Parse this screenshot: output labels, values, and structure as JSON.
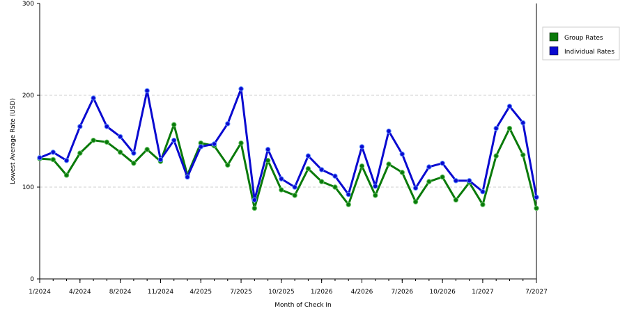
{
  "chart_data": {
    "type": "line",
    "title": "",
    "xlabel": "Month of Check In",
    "ylabel": "Lowest Average Rate (USD)",
    "ylim": [
      0,
      300
    ],
    "y_ticks": [
      "0",
      "100",
      "200",
      "300"
    ],
    "grid": "horizontal dashed",
    "legend_position": "top-right",
    "x_tick_labels": [
      {
        "i": 0,
        "label": "1/2024"
      },
      {
        "i": 3,
        "label": "4/2024"
      },
      {
        "i": 6,
        "label": "8/2024"
      },
      {
        "i": 9,
        "label": "11/2024"
      },
      {
        "i": 12,
        "label": "4/2025"
      },
      {
        "i": 15,
        "label": "7/2025"
      },
      {
        "i": 18,
        "label": "10/2025"
      },
      {
        "i": 21,
        "label": "1/2026"
      },
      {
        "i": 24,
        "label": "4/2026"
      },
      {
        "i": 27,
        "label": "7/2026"
      },
      {
        "i": 30,
        "label": "10/2026"
      },
      {
        "i": 33,
        "label": "1/2027"
      },
      {
        "i": 37,
        "label": "7/2027"
      }
    ],
    "series": [
      {
        "name": "Group Rates",
        "color": "#0a7a0a",
        "values": [
          131,
          130,
          113,
          137,
          151,
          149,
          138,
          126,
          141,
          128,
          168,
          113,
          148,
          145,
          124,
          148,
          77,
          129,
          97,
          91,
          120,
          106,
          100,
          81,
          123,
          91,
          125,
          116,
          84,
          106,
          111,
          86,
          105,
          81,
          134,
          164,
          135,
          77
        ]
      },
      {
        "name": "Individual Rates",
        "color": "#0a0ad0",
        "values": [
          132,
          138,
          129,
          166,
          197,
          166,
          155,
          137,
          205,
          130,
          151,
          111,
          144,
          147,
          169,
          207,
          86,
          141,
          109,
          100,
          134,
          119,
          112,
          92,
          144,
          101,
          161,
          136,
          99,
          122,
          126,
          107,
          107,
          95,
          164,
          188,
          170,
          89
        ]
      }
    ]
  }
}
